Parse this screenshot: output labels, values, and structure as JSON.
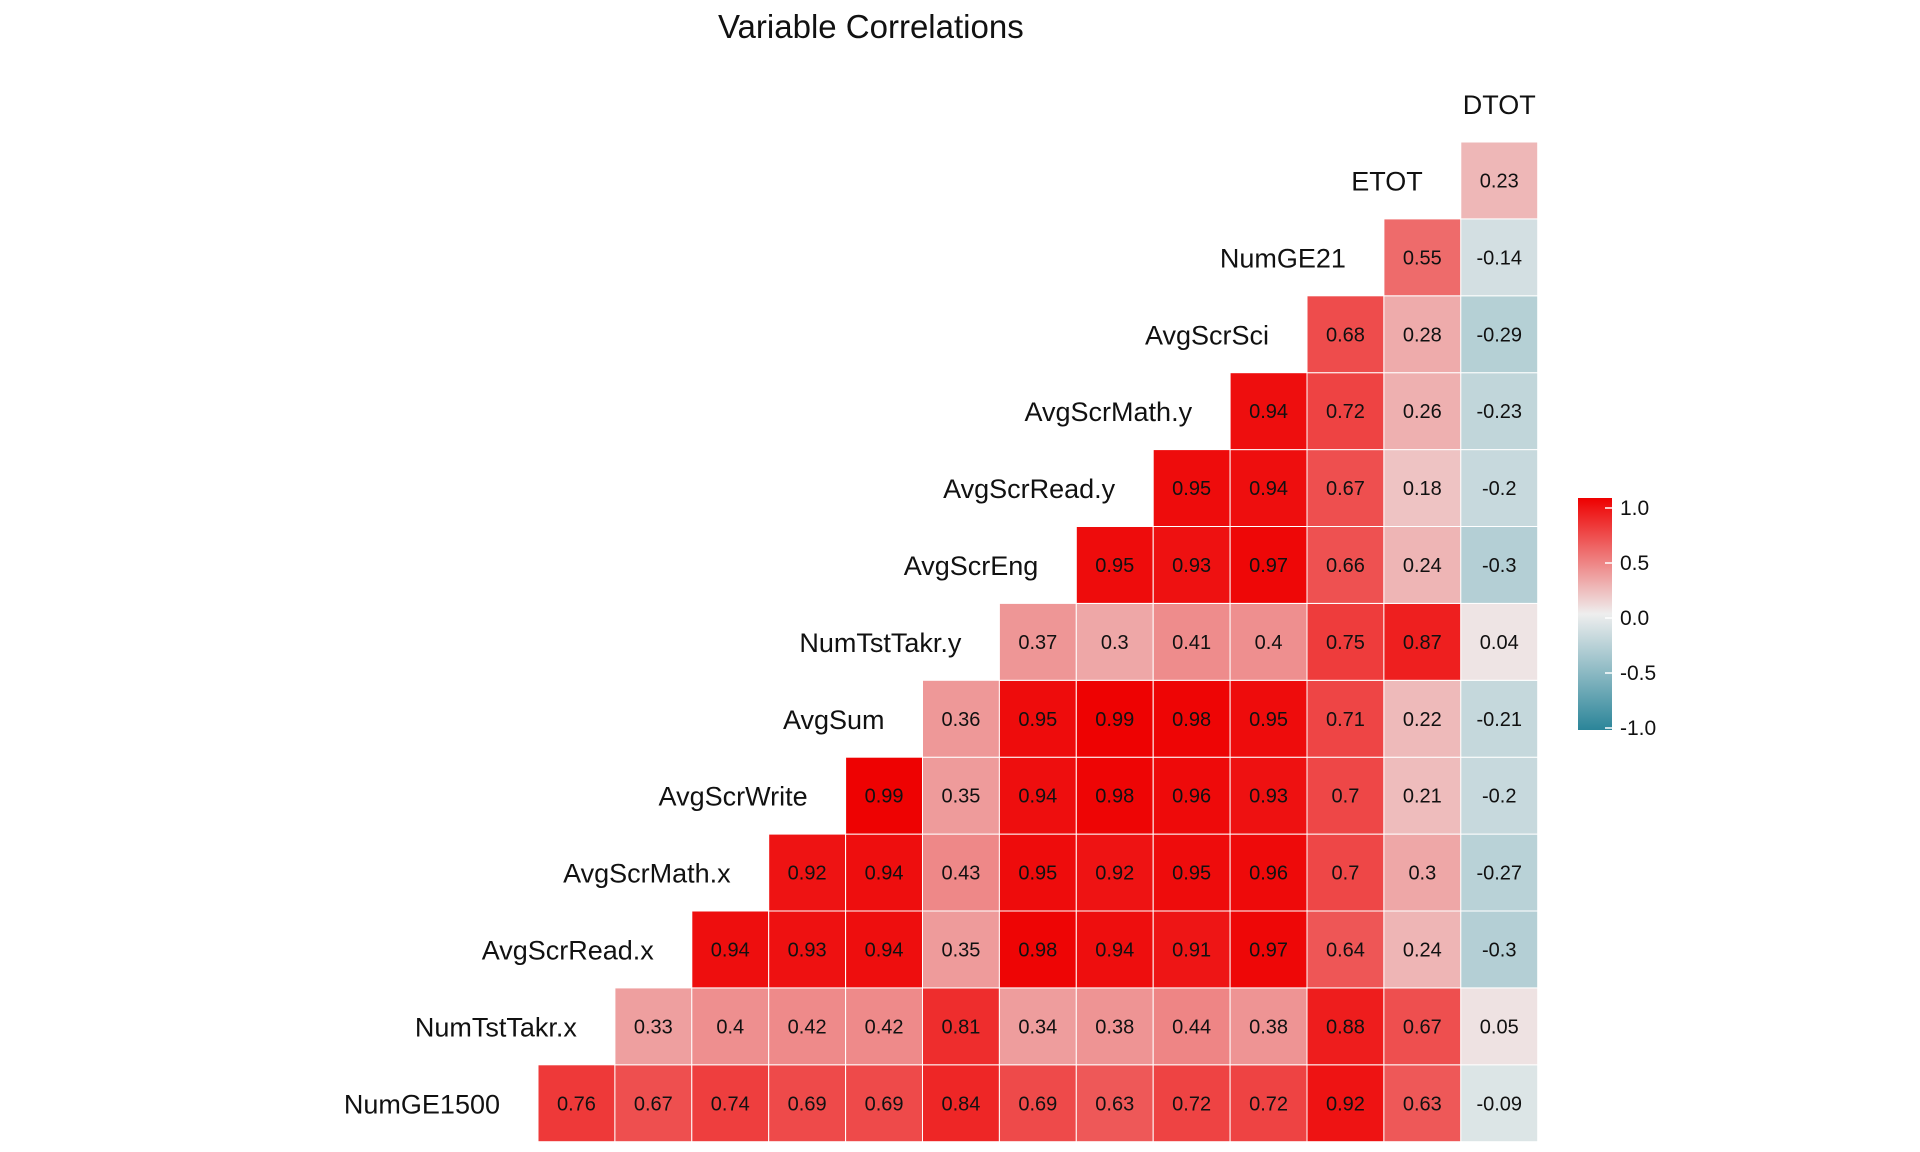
{
  "chart_data": {
    "type": "heatmap",
    "title": "Variable Correlations",
    "variables": [
      "NumGE1500",
      "NumTstTakr.x",
      "AvgScrRead.x",
      "AvgScrMath.x",
      "AvgScrWrite",
      "AvgSum",
      "NumTstTakr.y",
      "AvgScrEng",
      "AvgScrRead.y",
      "AvgScrMath.y",
      "AvgScrSci",
      "NumGE21",
      "ETOT",
      "DTOT"
    ],
    "cells": [
      {
        "row": "NumGE1500",
        "col": "NumTstTakr.x",
        "value": 0.76,
        "label": "0.76"
      },
      {
        "row": "NumGE1500",
        "col": "AvgScrRead.x",
        "value": 0.67,
        "label": "0.67"
      },
      {
        "row": "NumGE1500",
        "col": "AvgScrMath.x",
        "value": 0.74,
        "label": "0.74"
      },
      {
        "row": "NumGE1500",
        "col": "AvgScrWrite",
        "value": 0.69,
        "label": "0.69"
      },
      {
        "row": "NumGE1500",
        "col": "AvgSum",
        "value": 0.69,
        "label": "0.69"
      },
      {
        "row": "NumGE1500",
        "col": "NumTstTakr.y",
        "value": 0.84,
        "label": "0.84"
      },
      {
        "row": "NumGE1500",
        "col": "AvgScrEng",
        "value": 0.69,
        "label": "0.69"
      },
      {
        "row": "NumGE1500",
        "col": "AvgScrRead.y",
        "value": 0.63,
        "label": "0.63"
      },
      {
        "row": "NumGE1500",
        "col": "AvgScrMath.y",
        "value": 0.72,
        "label": "0.72"
      },
      {
        "row": "NumGE1500",
        "col": "AvgScrSci",
        "value": 0.72,
        "label": "0.72"
      },
      {
        "row": "NumGE1500",
        "col": "NumGE21",
        "value": 0.92,
        "label": "0.92"
      },
      {
        "row": "NumGE1500",
        "col": "ETOT",
        "value": 0.63,
        "label": "0.63"
      },
      {
        "row": "NumGE1500",
        "col": "DTOT",
        "value": -0.09,
        "label": "-0.09"
      },
      {
        "row": "NumTstTakr.x",
        "col": "AvgScrRead.x",
        "value": 0.33,
        "label": "0.33"
      },
      {
        "row": "NumTstTakr.x",
        "col": "AvgScrMath.x",
        "value": 0.4,
        "label": "0.4"
      },
      {
        "row": "NumTstTakr.x",
        "col": "AvgScrWrite",
        "value": 0.42,
        "label": "0.42"
      },
      {
        "row": "NumTstTakr.x",
        "col": "AvgSum",
        "value": 0.42,
        "label": "0.42"
      },
      {
        "row": "NumTstTakr.x",
        "col": "NumTstTakr.y",
        "value": 0.81,
        "label": "0.81"
      },
      {
        "row": "NumTstTakr.x",
        "col": "AvgScrEng",
        "value": 0.34,
        "label": "0.34"
      },
      {
        "row": "NumTstTakr.x",
        "col": "AvgScrRead.y",
        "value": 0.38,
        "label": "0.38"
      },
      {
        "row": "NumTstTakr.x",
        "col": "AvgScrMath.y",
        "value": 0.44,
        "label": "0.44"
      },
      {
        "row": "NumTstTakr.x",
        "col": "AvgScrSci",
        "value": 0.38,
        "label": "0.38"
      },
      {
        "row": "NumTstTakr.x",
        "col": "NumGE21",
        "value": 0.88,
        "label": "0.88"
      },
      {
        "row": "NumTstTakr.x",
        "col": "ETOT",
        "value": 0.67,
        "label": "0.67"
      },
      {
        "row": "NumTstTakr.x",
        "col": "DTOT",
        "value": 0.05,
        "label": "0.05"
      },
      {
        "row": "AvgScrRead.x",
        "col": "AvgScrMath.x",
        "value": 0.94,
        "label": "0.94"
      },
      {
        "row": "AvgScrRead.x",
        "col": "AvgScrWrite",
        "value": 0.93,
        "label": "0.93"
      },
      {
        "row": "AvgScrRead.x",
        "col": "AvgSum",
        "value": 0.94,
        "label": "0.94"
      },
      {
        "row": "AvgScrRead.x",
        "col": "NumTstTakr.y",
        "value": 0.35,
        "label": "0.35"
      },
      {
        "row": "AvgScrRead.x",
        "col": "AvgScrEng",
        "value": 0.98,
        "label": "0.98"
      },
      {
        "row": "AvgScrRead.x",
        "col": "AvgScrRead.y",
        "value": 0.94,
        "label": "0.94"
      },
      {
        "row": "AvgScrRead.x",
        "col": "AvgScrMath.y",
        "value": 0.91,
        "label": "0.91"
      },
      {
        "row": "AvgScrRead.x",
        "col": "AvgScrSci",
        "value": 0.97,
        "label": "0.97"
      },
      {
        "row": "AvgScrRead.x",
        "col": "NumGE21",
        "value": 0.64,
        "label": "0.64"
      },
      {
        "row": "AvgScrRead.x",
        "col": "ETOT",
        "value": 0.24,
        "label": "0.24"
      },
      {
        "row": "AvgScrRead.x",
        "col": "DTOT",
        "value": -0.3,
        "label": "-0.3"
      },
      {
        "row": "AvgScrMath.x",
        "col": "AvgScrWrite",
        "value": 0.92,
        "label": "0.92"
      },
      {
        "row": "AvgScrMath.x",
        "col": "AvgSum",
        "value": 0.94,
        "label": "0.94"
      },
      {
        "row": "AvgScrMath.x",
        "col": "NumTstTakr.y",
        "value": 0.43,
        "label": "0.43"
      },
      {
        "row": "AvgScrMath.x",
        "col": "AvgScrEng",
        "value": 0.95,
        "label": "0.95"
      },
      {
        "row": "AvgScrMath.x",
        "col": "AvgScrRead.y",
        "value": 0.92,
        "label": "0.92"
      },
      {
        "row": "AvgScrMath.x",
        "col": "AvgScrMath.y",
        "value": 0.95,
        "label": "0.95"
      },
      {
        "row": "AvgScrMath.x",
        "col": "AvgScrSci",
        "value": 0.96,
        "label": "0.96"
      },
      {
        "row": "AvgScrMath.x",
        "col": "NumGE21",
        "value": 0.7,
        "label": "0.7"
      },
      {
        "row": "AvgScrMath.x",
        "col": "ETOT",
        "value": 0.3,
        "label": "0.3"
      },
      {
        "row": "AvgScrMath.x",
        "col": "DTOT",
        "value": -0.27,
        "label": "-0.27"
      },
      {
        "row": "AvgScrWrite",
        "col": "AvgSum",
        "value": 0.99,
        "label": "0.99"
      },
      {
        "row": "AvgScrWrite",
        "col": "NumTstTakr.y",
        "value": 0.35,
        "label": "0.35"
      },
      {
        "row": "AvgScrWrite",
        "col": "AvgScrEng",
        "value": 0.94,
        "label": "0.94"
      },
      {
        "row": "AvgScrWrite",
        "col": "AvgScrRead.y",
        "value": 0.98,
        "label": "0.98"
      },
      {
        "row": "AvgScrWrite",
        "col": "AvgScrMath.y",
        "value": 0.96,
        "label": "0.96"
      },
      {
        "row": "AvgScrWrite",
        "col": "AvgScrSci",
        "value": 0.93,
        "label": "0.93"
      },
      {
        "row": "AvgScrWrite",
        "col": "NumGE21",
        "value": 0.7,
        "label": "0.7"
      },
      {
        "row": "AvgScrWrite",
        "col": "ETOT",
        "value": 0.21,
        "label": "0.21"
      },
      {
        "row": "AvgScrWrite",
        "col": "DTOT",
        "value": -0.2,
        "label": "-0.2"
      },
      {
        "row": "AvgSum",
        "col": "NumTstTakr.y",
        "value": 0.36,
        "label": "0.36"
      },
      {
        "row": "AvgSum",
        "col": "AvgScrEng",
        "value": 0.95,
        "label": "0.95"
      },
      {
        "row": "AvgSum",
        "col": "AvgScrRead.y",
        "value": 0.99,
        "label": "0.99"
      },
      {
        "row": "AvgSum",
        "col": "AvgScrMath.y",
        "value": 0.98,
        "label": "0.98"
      },
      {
        "row": "AvgSum",
        "col": "AvgScrSci",
        "value": 0.95,
        "label": "0.95"
      },
      {
        "row": "AvgSum",
        "col": "NumGE21",
        "value": 0.71,
        "label": "0.71"
      },
      {
        "row": "AvgSum",
        "col": "ETOT",
        "value": 0.22,
        "label": "0.22"
      },
      {
        "row": "AvgSum",
        "col": "DTOT",
        "value": -0.21,
        "label": "-0.21"
      },
      {
        "row": "NumTstTakr.y",
        "col": "AvgScrEng",
        "value": 0.37,
        "label": "0.37"
      },
      {
        "row": "NumTstTakr.y",
        "col": "AvgScrRead.y",
        "value": 0.3,
        "label": "0.3"
      },
      {
        "row": "NumTstTakr.y",
        "col": "AvgScrMath.y",
        "value": 0.41,
        "label": "0.41"
      },
      {
        "row": "NumTstTakr.y",
        "col": "AvgScrSci",
        "value": 0.4,
        "label": "0.4"
      },
      {
        "row": "NumTstTakr.y",
        "col": "NumGE21",
        "value": 0.75,
        "label": "0.75"
      },
      {
        "row": "NumTstTakr.y",
        "col": "ETOT",
        "value": 0.87,
        "label": "0.87"
      },
      {
        "row": "NumTstTakr.y",
        "col": "DTOT",
        "value": 0.04,
        "label": "0.04"
      },
      {
        "row": "AvgScrEng",
        "col": "AvgScrRead.y",
        "value": 0.95,
        "label": "0.95"
      },
      {
        "row": "AvgScrEng",
        "col": "AvgScrMath.y",
        "value": 0.93,
        "label": "0.93"
      },
      {
        "row": "AvgScrEng",
        "col": "AvgScrSci",
        "value": 0.97,
        "label": "0.97"
      },
      {
        "row": "AvgScrEng",
        "col": "NumGE21",
        "value": 0.66,
        "label": "0.66"
      },
      {
        "row": "AvgScrEng",
        "col": "ETOT",
        "value": 0.24,
        "label": "0.24"
      },
      {
        "row": "AvgScrEng",
        "col": "DTOT",
        "value": -0.3,
        "label": "-0.3"
      },
      {
        "row": "AvgScrRead.y",
        "col": "AvgScrMath.y",
        "value": 0.95,
        "label": "0.95"
      },
      {
        "row": "AvgScrRead.y",
        "col": "AvgScrSci",
        "value": 0.94,
        "label": "0.94"
      },
      {
        "row": "AvgScrRead.y",
        "col": "NumGE21",
        "value": 0.67,
        "label": "0.67"
      },
      {
        "row": "AvgScrRead.y",
        "col": "ETOT",
        "value": 0.18,
        "label": "0.18"
      },
      {
        "row": "AvgScrRead.y",
        "col": "DTOT",
        "value": -0.2,
        "label": "-0.2"
      },
      {
        "row": "AvgScrMath.y",
        "col": "AvgScrSci",
        "value": 0.94,
        "label": "0.94"
      },
      {
        "row": "AvgScrMath.y",
        "col": "NumGE21",
        "value": 0.72,
        "label": "0.72"
      },
      {
        "row": "AvgScrMath.y",
        "col": "ETOT",
        "value": 0.26,
        "label": "0.26"
      },
      {
        "row": "AvgScrMath.y",
        "col": "DTOT",
        "value": -0.23,
        "label": "-0.23"
      },
      {
        "row": "AvgScrSci",
        "col": "NumGE21",
        "value": 0.68,
        "label": "0.68"
      },
      {
        "row": "AvgScrSci",
        "col": "ETOT",
        "value": 0.28,
        "label": "0.28"
      },
      {
        "row": "AvgScrSci",
        "col": "DTOT",
        "value": -0.29,
        "label": "-0.29"
      },
      {
        "row": "NumGE21",
        "col": "ETOT",
        "value": 0.55,
        "label": "0.55"
      },
      {
        "row": "NumGE21",
        "col": "DTOT",
        "value": -0.14,
        "label": "-0.14"
      },
      {
        "row": "ETOT",
        "col": "DTOT",
        "value": 0.23,
        "label": "0.23"
      }
    ],
    "color_scale": {
      "low": "#2b8599",
      "mid": "#eeeeee",
      "high": "#ee0000",
      "range": [
        -1,
        1
      ]
    },
    "legend": {
      "position": "right",
      "ticks": [
        "1.0",
        "0.5",
        "0.0",
        "-0.5",
        "-1.0"
      ],
      "tick_values": [
        1.0,
        0.5,
        0.0,
        -0.5,
        -1.0
      ]
    }
  }
}
